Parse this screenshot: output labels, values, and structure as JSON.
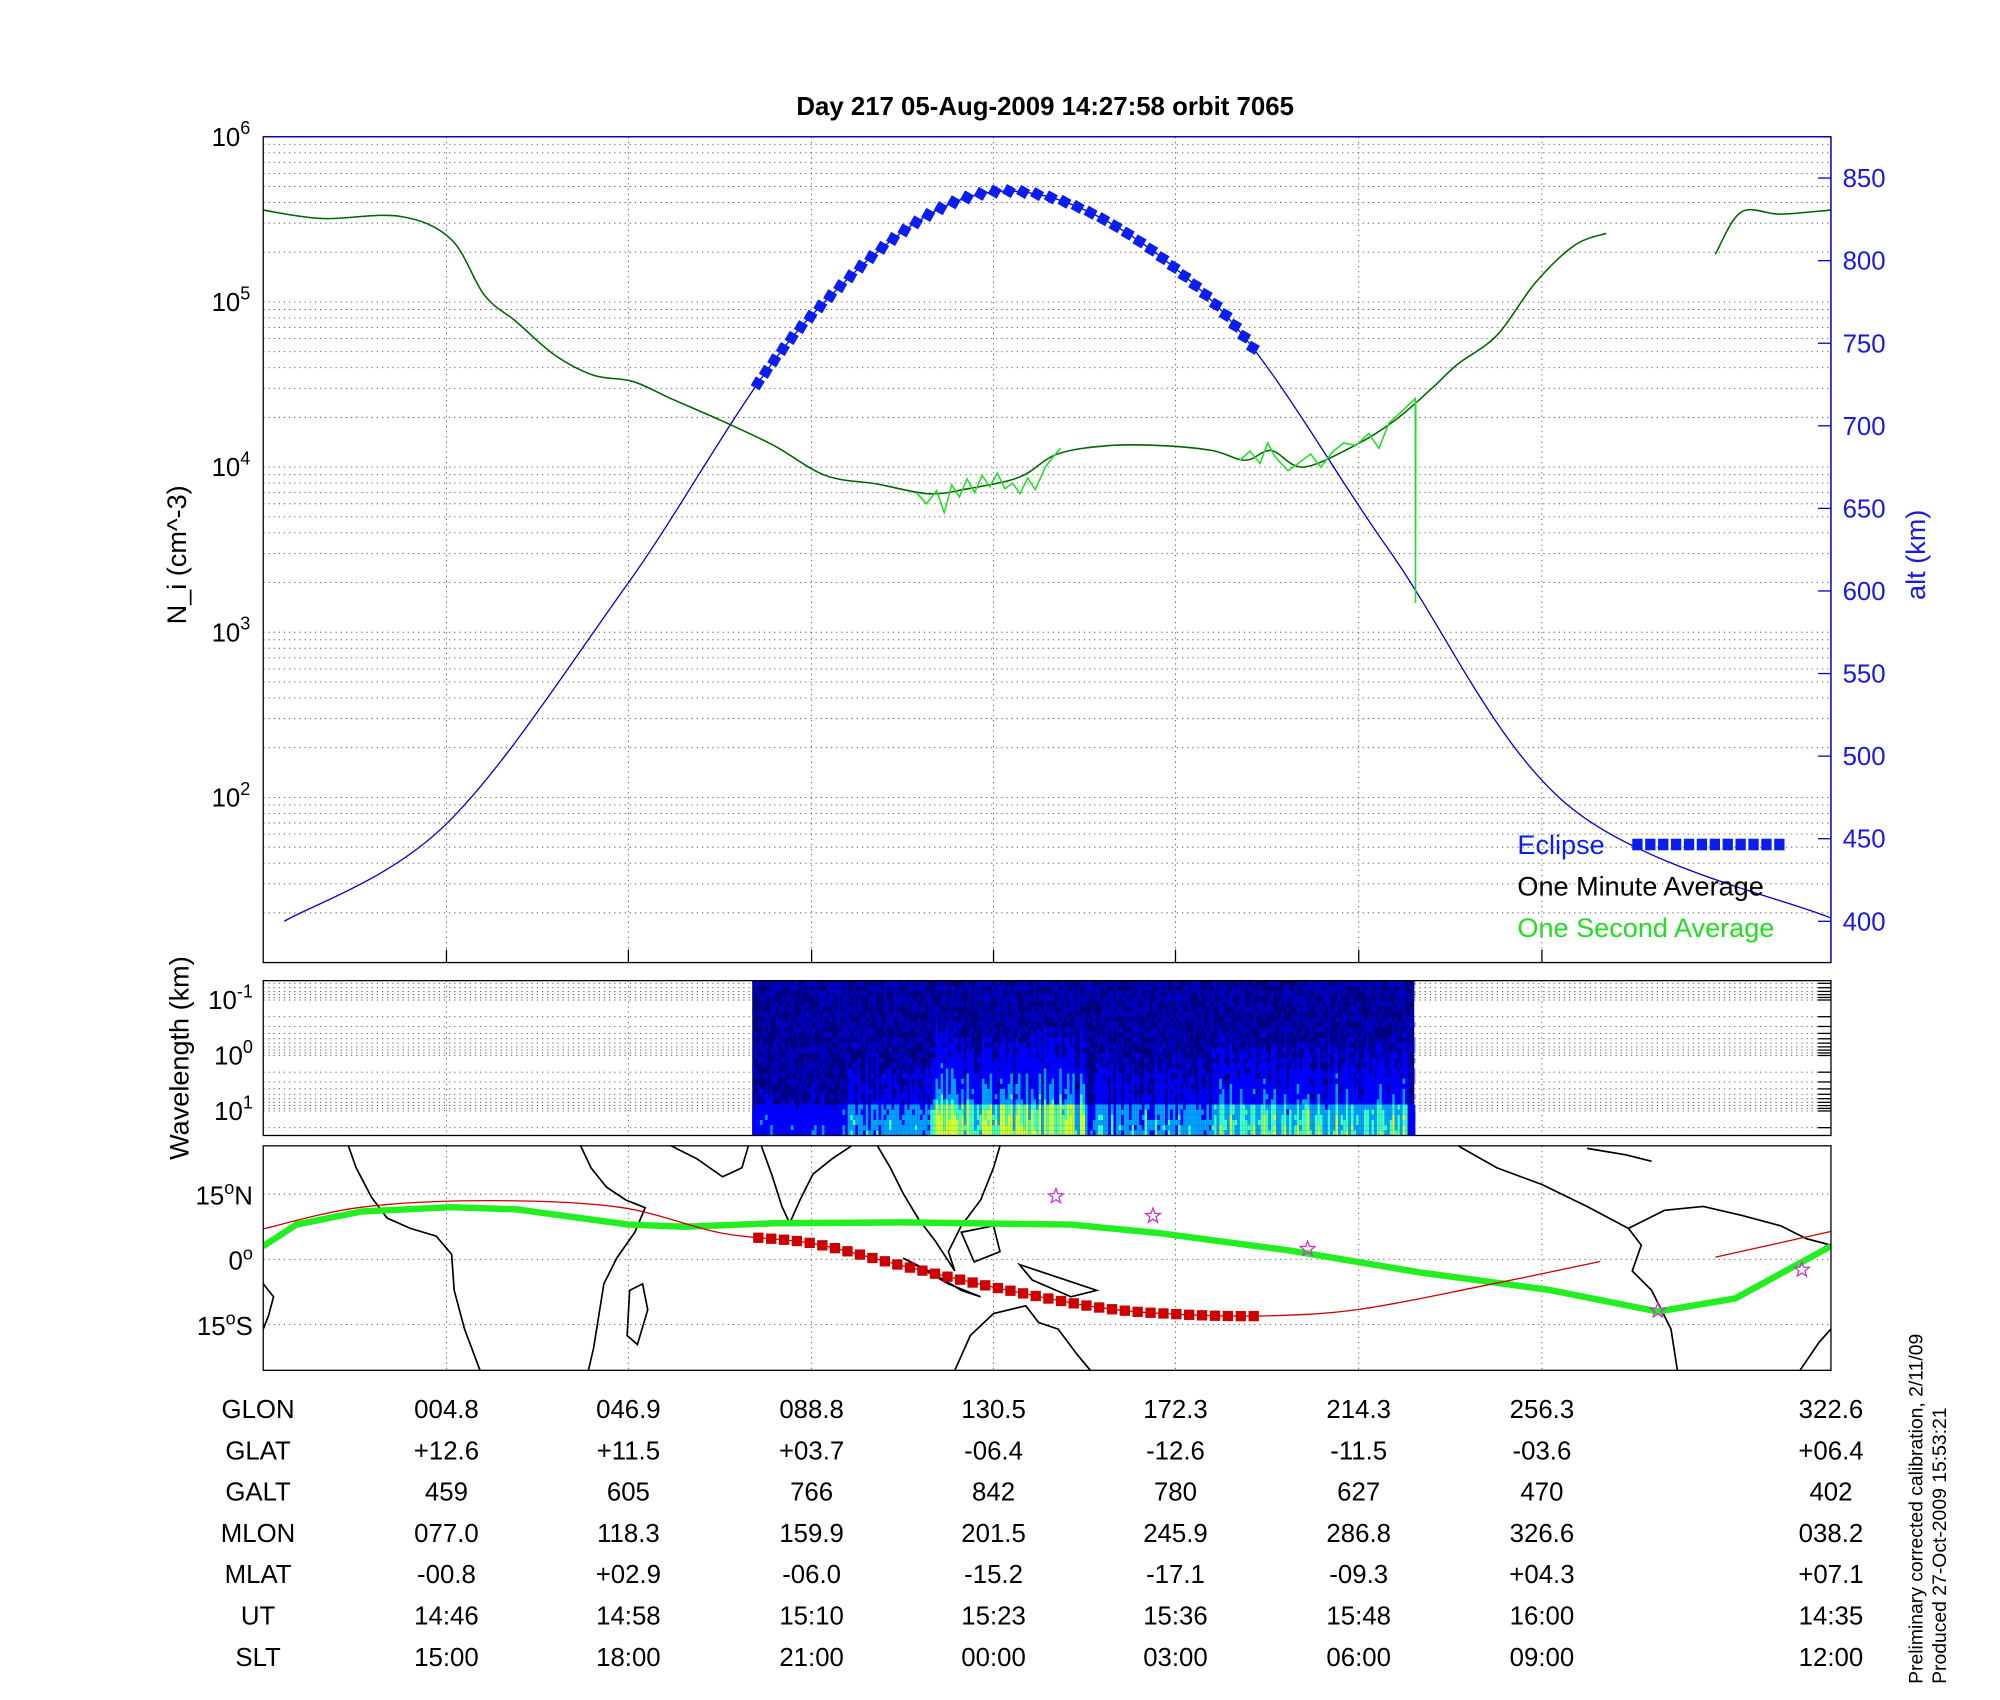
{
  "title": "Day 217  05-Aug-2009 14:27:58   orbit 7065",
  "colors": {
    "altitude": "#0000c8",
    "eclipse": "#0a1ef0",
    "one_minute": "#006400",
    "one_second": "#22dd22",
    "track": "#cc0000",
    "mag_equator": "#22ee22",
    "stars": "#cc33cc"
  },
  "chart_data": [
    {
      "type": "line",
      "panel": "density",
      "ylabel": "N_i (cm^-3)",
      "ylabel_parts": {
        "base": "N",
        "sub": "i",
        "unit": " (cm",
        "exp": "-3",
        "close": ")"
      },
      "yscale": "log",
      "ylim": [
        10,
        1000000
      ],
      "yticks": [
        {
          "base": "10",
          "exp": "2"
        },
        {
          "base": "10",
          "exp": "3"
        },
        {
          "base": "10",
          "exp": "4"
        },
        {
          "base": "10",
          "exp": "5"
        },
        {
          "base": "10",
          "exp": "6"
        }
      ],
      "y2label": "alt (km)",
      "y2lim": [
        375,
        875
      ],
      "y2ticks": [
        "400",
        "450",
        "500",
        "550",
        "600",
        "650",
        "700",
        "750",
        "800",
        "850"
      ],
      "xlim": [
        "14:33:55",
        "16:17:20"
      ],
      "grid": true,
      "legend_position": "bottom-right",
      "legend": [
        {
          "label": "Eclipse",
          "color": "#0a1ef0"
        },
        {
          "label": "One Minute Average",
          "color": "#000000"
        },
        {
          "label": "One Second Average",
          "color": "#22dd22"
        }
      ],
      "series": [
        {
          "name": "One Minute Average",
          "axis": "left",
          "segments": [
            [
              [
                "14:33:54",
                360000
              ],
              [
                "14:37:48",
                320000
              ],
              [
                "14:42:54",
                330000
              ],
              [
                "14:46:18",
                240000
              ],
              [
                "14:48:30",
                110000
              ],
              [
                "14:50:36",
                76000
              ],
              [
                "14:53:06",
                48000
              ],
              [
                "14:55:42",
                36000
              ],
              [
                "14:58:18",
                33000
              ],
              [
                "15:00:48",
                26000
              ],
              [
                "15:04:12",
                19000
              ],
              [
                "15:07:36",
                13500
              ],
              [
                "15:11:00",
                8900
              ],
              [
                "15:14:24",
                7900
              ],
              [
                "15:17:48",
                6900
              ],
              [
                "15:20:24",
                7400
              ],
              [
                "15:23:48",
                8700
              ],
              [
                "15:26:18",
                12000
              ],
              [
                "15:29:42",
                13500
              ],
              [
                "15:33:06",
                13500
              ],
              [
                "15:36:30",
                12600
              ],
              [
                "15:38:42",
                11000
              ],
              [
                "15:40:24",
                12600
              ],
              [
                "15:42:30",
                10000
              ],
              [
                "15:45:54",
                13500
              ],
              [
                "15:48:30",
                19000
              ],
              [
                "15:51:00",
                30000
              ],
              [
                "15:52:42",
                42000
              ],
              [
                "15:55:18",
                63000
              ],
              [
                "15:57:48",
                130000
              ],
              [
                "16:00:24",
                220000
              ],
              [
                "16:02:30",
                260000
              ]
            ],
            [
              [
                "16:09:42",
                195000
              ],
              [
                "16:11:24",
                350000
              ],
              [
                "16:14:00",
                340000
              ],
              [
                "16:17:18",
                360000
              ]
            ]
          ]
        },
        {
          "name": "One Second Average",
          "axis": "left",
          "segments": [
            [
              [
                "15:17:00",
                7000
              ],
              [
                "15:17:40",
                6000
              ],
              [
                "15:18:20",
                7200
              ],
              [
                "15:18:50",
                5300
              ],
              [
                "15:19:20",
                7800
              ],
              [
                "15:19:50",
                6600
              ],
              [
                "15:20:20",
                8500
              ],
              [
                "15:20:50",
                7000
              ],
              [
                "15:21:20",
                8900
              ],
              [
                "15:21:50",
                7600
              ],
              [
                "15:22:20",
                9200
              ],
              [
                "15:22:50",
                7400
              ],
              [
                "15:23:20",
                8000
              ],
              [
                "15:23:50",
                6900
              ],
              [
                "15:24:20",
                8600
              ],
              [
                "15:24:50",
                7300
              ],
              [
                "15:25:30",
                10000
              ],
              [
                "15:26:00",
                11500
              ],
              [
                "15:26:30",
                13000
              ]
            ],
            [
              [
                "15:38:20",
                11000
              ],
              [
                "15:39:00",
                12500
              ],
              [
                "15:39:40",
                10500
              ],
              [
                "15:40:10",
                14000
              ],
              [
                "15:40:40",
                11500
              ],
              [
                "15:41:30",
                9500
              ],
              [
                "15:42:10",
                10500
              ],
              [
                "15:43:00",
                12000
              ],
              [
                "15:43:40",
                10000
              ],
              [
                "15:44:30",
                12500
              ],
              [
                "15:45:10",
                14000
              ],
              [
                "15:46:00",
                13500
              ],
              [
                "15:46:50",
                16000
              ],
              [
                "15:47:30",
                13000
              ],
              [
                "15:48:10",
                18500
              ],
              [
                "15:48:50",
                21000
              ],
              [
                "15:49:30",
                24000
              ],
              [
                "15:49:54",
                26000
              ],
              [
                "15:49:55",
                1500
              ],
              [
                "15:49:56",
                25000
              ]
            ]
          ]
        },
        {
          "name": "alt",
          "axis": "right",
          "points": [
            [
              "14:35:18",
              400
            ],
            [
              "14:46:00",
              459
            ],
            [
              "14:58:00",
              605
            ],
            [
              "15:10:00",
              766
            ],
            [
              "15:22:30",
              842
            ],
            [
              "15:36:00",
              780
            ],
            [
              "15:48:00",
              627
            ],
            [
              "16:00:00",
              470
            ],
            [
              "16:17:18",
              402
            ]
          ]
        }
      ],
      "eclipse": {
        "start": "15:06:30",
        "end": "15:39:42"
      }
    },
    {
      "type": "heatmap",
      "panel": "spectrogram",
      "ylabel": "Wavelength (km)",
      "yticks": [
        {
          "base": "10",
          "exp": "-1"
        },
        {
          "base": "10",
          "exp": "0"
        },
        {
          "base": "10",
          "exp": "1"
        }
      ],
      "data_range": {
        "start": "15:06:10",
        "end": "15:49:50"
      },
      "colormap": [
        "#00007f",
        "#0000ff",
        "#00a0ff",
        "#40ffc0",
        "#d0ff30"
      ]
    },
    {
      "type": "line",
      "panel": "map",
      "yticks": [
        {
          "value": "15",
          "deg": "o",
          "hemi": "N"
        },
        {
          "value": "0",
          "deg": "o",
          "hemi": ""
        },
        {
          "value": "15",
          "deg": "o",
          "hemi": "S"
        }
      ],
      "ylim": [
        -25.5,
        26.3
      ],
      "series": [
        {
          "name": "magnetic equator",
          "points": [
            [
              "14:33:54",
              3
            ],
            [
              "14:36:06",
              8
            ],
            [
              "14:40:24",
              11
            ],
            [
              "14:46:18",
              12
            ],
            [
              "14:50:36",
              11.5
            ],
            [
              "14:58:00",
              8
            ],
            [
              "15:01:42",
              7.5
            ],
            [
              "15:07:36",
              8.3
            ],
            [
              "15:16:06",
              8.5
            ],
            [
              "15:27:12",
              8
            ],
            [
              "15:33:06",
              6
            ],
            [
              "15:41:42",
              2
            ],
            [
              "15:50:12",
              -3
            ],
            [
              "15:58:42",
              -7
            ],
            [
              "16:05:54",
              -12
            ],
            [
              "16:11:00",
              -9
            ],
            [
              "16:17:18",
              3
            ]
          ]
        },
        {
          "name": "satellite track",
          "segments": [
            [
              [
                "14:33:54",
                7
              ],
              [
                "14:40:24",
                12
              ],
              [
                "14:48:54",
                13.5
              ],
              [
                "14:57:24",
                12
              ],
              [
                "15:04:12",
                6
              ],
              [
                "15:10:06",
                3.7
              ],
              [
                "15:16:06",
                -1.5
              ],
              [
                "15:22:06",
                -6.4
              ],
              [
                "15:28:54",
                -11
              ],
              [
                "15:34:06",
                -12.6
              ],
              [
                "15:40:00",
                -13
              ],
              [
                "15:46:12",
                -11.5
              ],
              [
                "15:54:30",
                -6
              ],
              [
                "16:02:06",
                -0.5
              ]
            ],
            [
              [
                "16:09:42",
                0.5
              ],
              [
                "16:17:18",
                6.4
              ]
            ]
          ]
        }
      ],
      "stars": [
        [
          "15:26:12",
          14.5
        ],
        [
          "15:32:36",
          10
        ],
        [
          "15:42:48",
          2.4
        ],
        [
          "16:05:54",
          -11.8
        ],
        [
          "16:15:24",
          -2.4
        ]
      ]
    }
  ],
  "table": {
    "rows": [
      {
        "label": "GLON",
        "values": [
          "004.8",
          "046.9",
          "088.8",
          "130.5",
          "172.3",
          "214.3",
          "256.3",
          "322.6"
        ]
      },
      {
        "label": "GLAT",
        "values": [
          "+12.6",
          "+11.5",
          "+03.7",
          "-06.4",
          "-12.6",
          "-11.5",
          "-03.6",
          "+06.4"
        ]
      },
      {
        "label": "GALT",
        "values": [
          "459",
          "605",
          "766",
          "842",
          "780",
          "627",
          "470",
          "402"
        ]
      },
      {
        "label": "MLON",
        "values": [
          "077.0",
          "118.3",
          "159.9",
          "201.5",
          "245.9",
          "286.8",
          "326.6",
          "038.2"
        ]
      },
      {
        "label": "MLAT",
        "values": [
          "-00.8",
          "+02.9",
          "-06.0",
          "-15.2",
          "-17.1",
          "-09.3",
          "+04.3",
          "+07.1"
        ]
      },
      {
        "label": "UT",
        "values": [
          "14:46",
          "14:58",
          "15:10",
          "15:23",
          "15:36",
          "15:48",
          "16:00",
          "14:35"
        ]
      },
      {
        "label": "SLT",
        "values": [
          "15:00",
          "18:00",
          "21:00",
          "00:00",
          "03:00",
          "06:00",
          "09:00",
          "12:00"
        ]
      }
    ]
  },
  "footer": {
    "line1": "Preliminary corrected calibration, 2/11/09",
    "line2": "Produced 27-Oct-2009 15:53:21"
  }
}
